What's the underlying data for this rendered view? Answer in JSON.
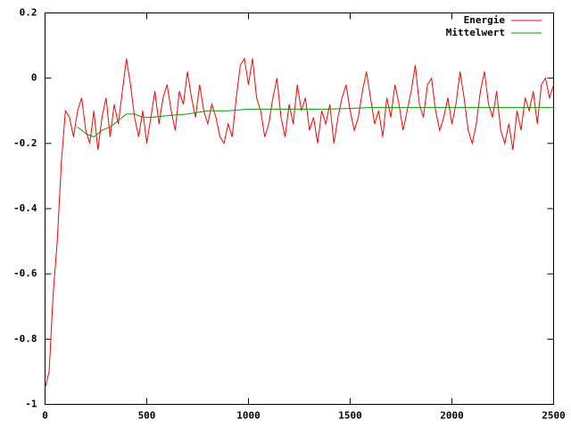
{
  "chart_data": {
    "type": "line",
    "series": [
      {
        "name": "Energie",
        "color": "#ff0000",
        "x": [
          0,
          20,
          40,
          60,
          80,
          100,
          120,
          140,
          160,
          180,
          200,
          220,
          240,
          260,
          280,
          300,
          320,
          340,
          360,
          380,
          400,
          420,
          440,
          460,
          480,
          500,
          520,
          540,
          560,
          580,
          600,
          620,
          640,
          660,
          680,
          700,
          720,
          740,
          760,
          780,
          800,
          820,
          840,
          860,
          880,
          900,
          920,
          940,
          960,
          980,
          1000,
          1020,
          1040,
          1060,
          1080,
          1100,
          1120,
          1140,
          1160,
          1180,
          1200,
          1220,
          1240,
          1260,
          1280,
          1300,
          1320,
          1340,
          1360,
          1380,
          1400,
          1420,
          1440,
          1460,
          1480,
          1500,
          1520,
          1540,
          1560,
          1580,
          1600,
          1620,
          1640,
          1660,
          1680,
          1700,
          1720,
          1740,
          1760,
          1780,
          1800,
          1820,
          1840,
          1860,
          1880,
          1900,
          1920,
          1940,
          1960,
          1980,
          2000,
          2020,
          2040,
          2060,
          2080,
          2100,
          2120,
          2140,
          2160,
          2180,
          2200,
          2220,
          2240,
          2260,
          2280,
          2300,
          2320,
          2340,
          2360,
          2380,
          2400,
          2420,
          2440,
          2460,
          2480,
          2500
        ],
        "values": [
          -0.95,
          -0.9,
          -0.66,
          -0.5,
          -0.26,
          -0.1,
          -0.12,
          -0.18,
          -0.1,
          -0.06,
          -0.16,
          -0.2,
          -0.1,
          -0.22,
          -0.12,
          -0.06,
          -0.18,
          -0.08,
          -0.14,
          -0.04,
          0.06,
          -0.02,
          -0.12,
          -0.18,
          -0.1,
          -0.2,
          -0.12,
          -0.04,
          -0.14,
          -0.06,
          -0.02,
          -0.1,
          -0.16,
          -0.04,
          -0.08,
          0.02,
          -0.06,
          -0.12,
          -0.02,
          -0.1,
          -0.14,
          -0.08,
          -0.12,
          -0.18,
          -0.2,
          -0.14,
          -0.18,
          -0.06,
          0.04,
          0.06,
          -0.02,
          0.06,
          -0.06,
          -0.1,
          -0.18,
          -0.14,
          -0.06,
          0,
          -0.12,
          -0.18,
          -0.08,
          -0.14,
          -0.02,
          -0.1,
          -0.06,
          -0.16,
          -0.12,
          -0.2,
          -0.1,
          -0.14,
          -0.08,
          -0.2,
          -0.12,
          -0.06,
          -0.02,
          -0.1,
          -0.16,
          -0.12,
          -0.04,
          0.02,
          -0.06,
          -0.14,
          -0.1,
          -0.18,
          -0.06,
          -0.12,
          -0.02,
          -0.08,
          -0.16,
          -0.1,
          -0.04,
          0.04,
          -0.08,
          -0.12,
          -0.02,
          0,
          -0.1,
          -0.16,
          -0.12,
          -0.06,
          -0.14,
          -0.08,
          0.02,
          -0.06,
          -0.16,
          -0.2,
          -0.14,
          -0.04,
          0.02,
          -0.08,
          -0.12,
          -0.04,
          -0.16,
          -0.2,
          -0.14,
          -0.22,
          -0.1,
          -0.16,
          -0.06,
          -0.1,
          -0.04,
          -0.14,
          -0.02,
          0,
          -0.06,
          -0.02
        ]
      },
      {
        "name": "Mittelwert",
        "color": "#00a000",
        "x": [
          160,
          200,
          240,
          280,
          320,
          360,
          400,
          440,
          480,
          520,
          600,
          700,
          800,
          900,
          1000,
          1200,
          1400,
          1600,
          1800,
          2000,
          2200,
          2400,
          2500
        ],
        "values": [
          -0.15,
          -0.17,
          -0.18,
          -0.16,
          -0.15,
          -0.13,
          -0.11,
          -0.11,
          -0.12,
          -0.12,
          -0.115,
          -0.11,
          -0.1,
          -0.1,
          -0.095,
          -0.095,
          -0.095,
          -0.09,
          -0.09,
          -0.09,
          -0.09,
          -0.09,
          -0.09
        ]
      }
    ],
    "xlim": [
      0,
      2500
    ],
    "xticks": [
      0,
      500,
      1000,
      1500,
      2000,
      2500
    ],
    "ylim": [
      -1,
      0.2
    ],
    "yticks": [
      -1,
      -0.8,
      -0.6,
      -0.4,
      -0.2,
      0,
      0.2
    ],
    "grid": false,
    "legend": "top-right"
  }
}
